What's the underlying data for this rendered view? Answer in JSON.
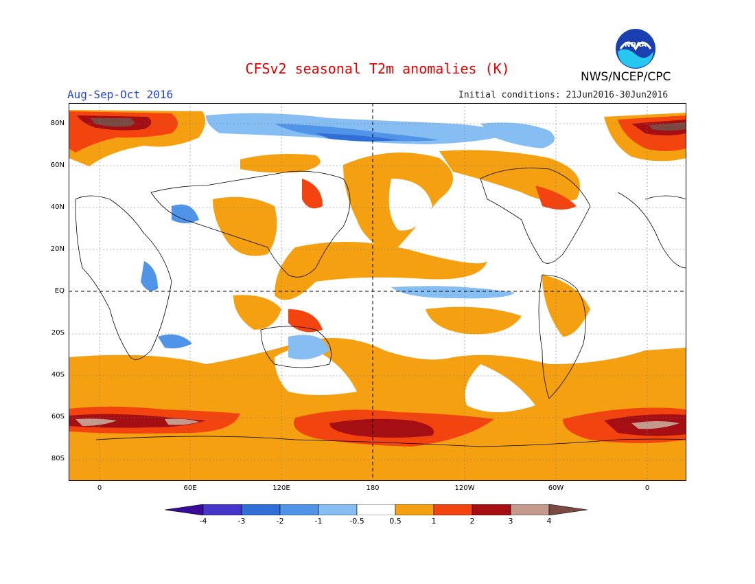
{
  "header": {
    "title": "CFSv2 seasonal T2m anomalies (K)",
    "period": "Aug-Sep-Oct 2016",
    "initial_conditions": "Initial conditions: 21Jun2016-30Jun2016",
    "agency": "NWS/NCEP/CPC",
    "logo_text": "NOAA"
  },
  "map": {
    "lat_labels": [
      "80N",
      "60N",
      "40N",
      "20N",
      "EQ",
      "20S",
      "40S",
      "60S",
      "80S"
    ],
    "lon_labels": [
      "0",
      "60E",
      "120E",
      "180",
      "120W",
      "60W",
      "0"
    ]
  },
  "colorbar": {
    "labels": [
      "-4",
      "-3",
      "-2",
      "-1",
      "-0.5",
      "0.5",
      "1",
      "2",
      "3",
      "4"
    ],
    "colors": [
      "#3a0a9a",
      "#4535c8",
      "#2f6fd6",
      "#4f94e8",
      "#86bdf2",
      "#ffffff",
      "#f5a010",
      "#f34410",
      "#a50e12",
      "#c39a8c",
      "#7a4a42"
    ]
  }
}
